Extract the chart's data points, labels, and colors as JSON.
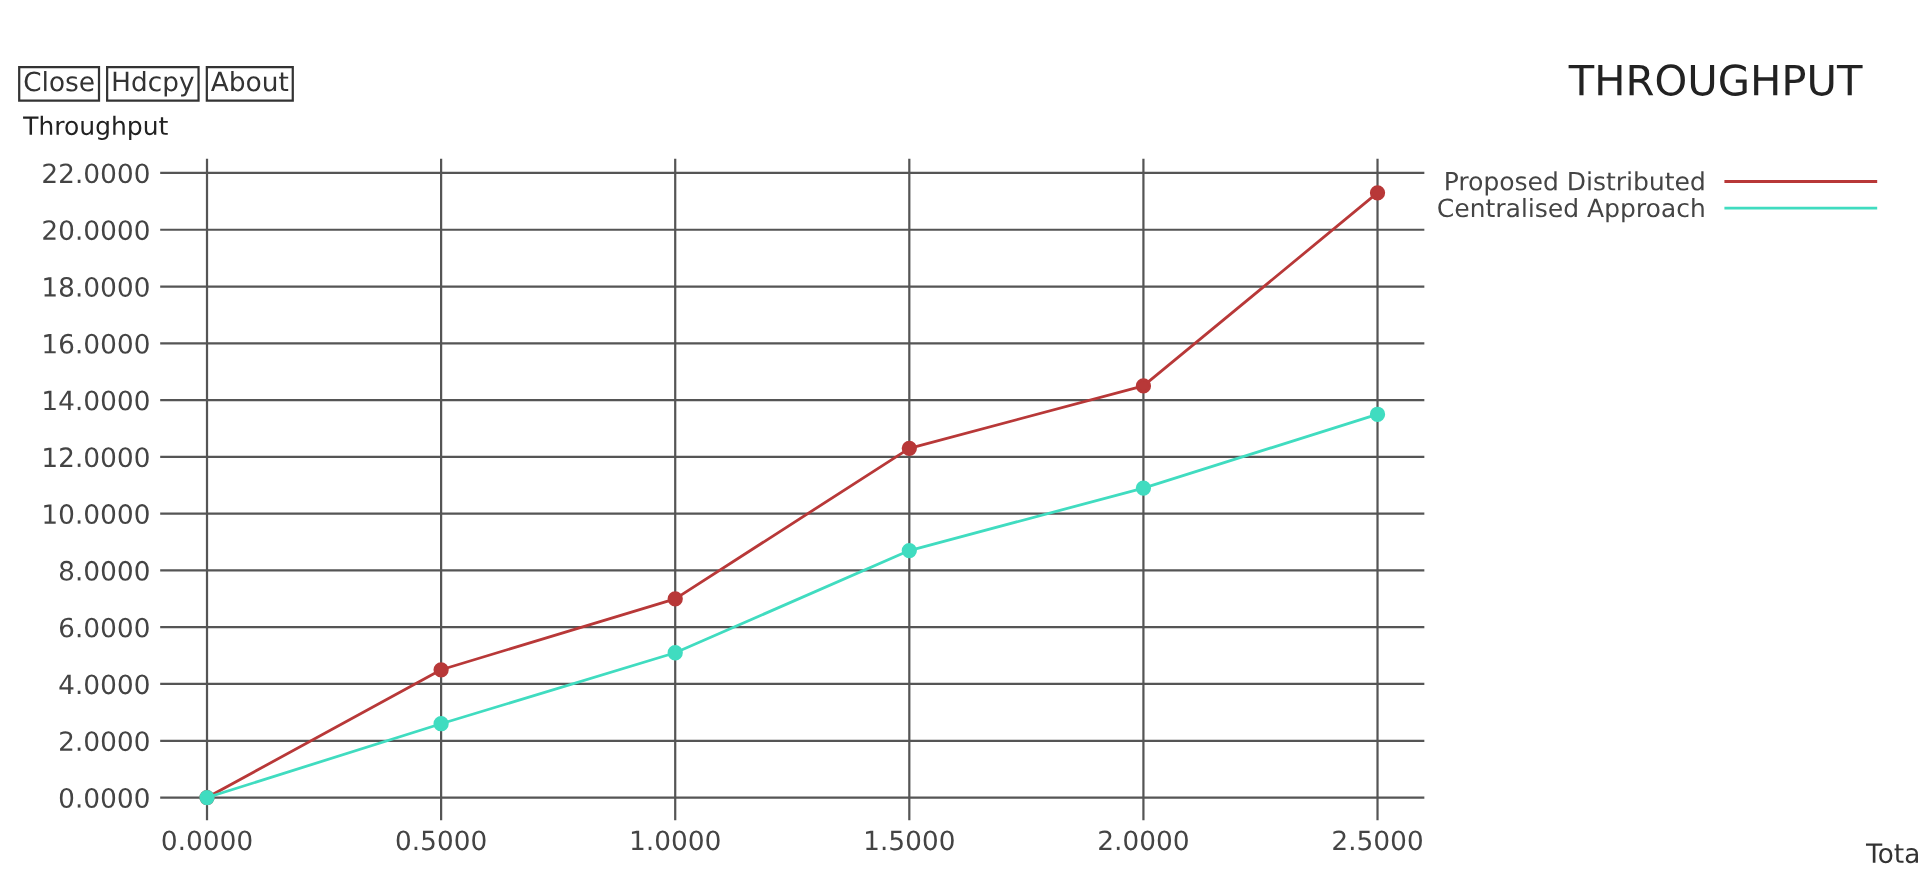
{
  "chart_data": {
    "type": "line",
    "title": "THROUGHPUT",
    "ylabel": "Throughput",
    "annotations": [
      "Close",
      "Hdcpy",
      "About",
      "Tota"
    ],
    "x": [
      0,
      0.5,
      1.0,
      1.5,
      2.0,
      2.5
    ],
    "series": [
      {
        "name": "Proposed Distributed",
        "color": "#b83838",
        "values": [
          0,
          4.5,
          7.0,
          12.3,
          14.5,
          21.3
        ]
      },
      {
        "name": "Centralised Approach",
        "color": "#40dcc0",
        "values": [
          0,
          2.6,
          5.1,
          8.7,
          10.9,
          13.5
        ]
      }
    ],
    "xlim": [
      -0.1,
      2.6
    ],
    "ylim": [
      -0.8,
      22.5
    ],
    "xticks": [
      {
        "value": 0,
        "label": "0.0000"
      },
      {
        "value": 0.5,
        "label": "0.5000"
      },
      {
        "value": 1.0,
        "label": "1.0000"
      },
      {
        "value": 1.5,
        "label": "1.5000"
      },
      {
        "value": 2.0,
        "label": "2.0000"
      },
      {
        "value": 2.5,
        "label": "2.5000"
      }
    ],
    "yticks": [
      {
        "value": 0,
        "label": "0.0000"
      },
      {
        "value": 2,
        "label": "2.0000"
      },
      {
        "value": 4,
        "label": "4.0000"
      },
      {
        "value": 6,
        "label": "6.0000"
      },
      {
        "value": 8,
        "label": "8.0000"
      },
      {
        "value": 10,
        "label": "10.0000"
      },
      {
        "value": 12,
        "label": "12.0000"
      },
      {
        "value": 14,
        "label": "14.0000"
      },
      {
        "value": 16,
        "label": "16.0000"
      },
      {
        "value": 18,
        "label": "18.0000"
      },
      {
        "value": 20,
        "label": "20.0000"
      },
      {
        "value": 22,
        "label": "22.0000"
      }
    ],
    "grid": true,
    "legend": "top right",
    "marker": "circle",
    "line_style": "solid"
  }
}
